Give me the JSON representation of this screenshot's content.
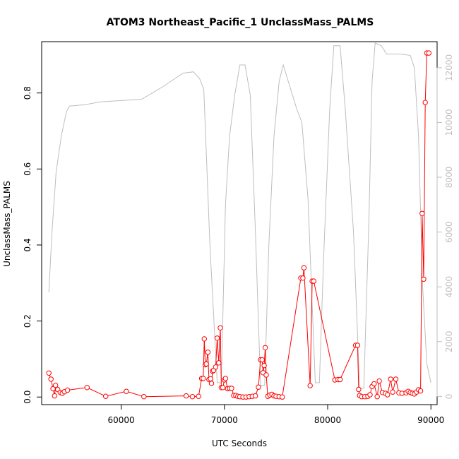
{
  "chart_data": {
    "type": "line",
    "title": "ATOM3 Northeast_Pacific_1 UnclassMass_PALMS",
    "xlabel": "UTC Seconds",
    "ylabel": "UnclassMass_PALMS",
    "xlim": [
      52300,
      90600
    ],
    "ylim": [
      -0.02,
      0.935
    ],
    "y2lim": [
      -300,
      12950
    ],
    "xticks": [
      60000,
      70000,
      80000,
      90000
    ],
    "yticks": [
      0.0,
      0.2,
      0.4,
      0.6,
      0.8
    ],
    "y2ticks": [
      0,
      2000,
      4000,
      6000,
      8000,
      10000,
      12000
    ],
    "colors": {
      "primary": "#ff0000",
      "secondary": "#bebebe",
      "frame": "#000000"
    },
    "series": [
      {
        "axis": "left",
        "style": "line+points",
        "color": "#ff0000",
        "points": [
          [
            53000,
            0.063
          ],
          [
            53200,
            0.047
          ],
          [
            53400,
            0.022
          ],
          [
            53550,
            0.003
          ],
          [
            53650,
            0.031
          ],
          [
            53850,
            0.02
          ],
          [
            54100,
            0.012
          ],
          [
            54300,
            0.01
          ],
          [
            54500,
            0.014
          ],
          [
            54800,
            0.018
          ],
          [
            56700,
            0.025
          ],
          [
            58500,
            0.002
          ],
          [
            60500,
            0.015
          ],
          [
            62200,
            0.001
          ],
          [
            66300,
            0.003
          ],
          [
            66900,
            0.001
          ],
          [
            67500,
            0.002
          ],
          [
            67800,
            0.049
          ],
          [
            67950,
            0.049
          ],
          [
            68050,
            0.153
          ],
          [
            68150,
            0.085
          ],
          [
            68250,
            0.087
          ],
          [
            68400,
            0.118
          ],
          [
            68500,
            0.046
          ],
          [
            68650,
            0.048
          ],
          [
            68750,
            0.036
          ],
          [
            68850,
            0.068
          ],
          [
            68950,
            0.07
          ],
          [
            69150,
            0.079
          ],
          [
            69300,
            0.155
          ],
          [
            69450,
            0.09
          ],
          [
            69600,
            0.182
          ],
          [
            69700,
            0.025
          ],
          [
            69850,
            0.025
          ],
          [
            70000,
            0.045
          ],
          [
            70100,
            0.049
          ],
          [
            70300,
            0.022
          ],
          [
            70500,
            0.023
          ],
          [
            70700,
            0.023
          ],
          [
            70900,
            0.004
          ],
          [
            71100,
            0.004
          ],
          [
            71300,
            0.002
          ],
          [
            71500,
            0.001
          ],
          [
            71800,
            0.0
          ],
          [
            72100,
            0.0
          ],
          [
            72400,
            0.001
          ],
          [
            72700,
            0.002
          ],
          [
            73000,
            0.003
          ],
          [
            73300,
            0.026
          ],
          [
            73500,
            0.098
          ],
          [
            73650,
            0.098
          ],
          [
            73750,
            0.064
          ],
          [
            73850,
            0.083
          ],
          [
            73950,
            0.13
          ],
          [
            74050,
            0.058
          ],
          [
            74200,
            0.002
          ],
          [
            74400,
            0.005
          ],
          [
            74600,
            0.007
          ],
          [
            74800,
            0.003
          ],
          [
            75000,
            0.002
          ],
          [
            75300,
            0.001
          ],
          [
            75600,
            0.0
          ],
          [
            77400,
            0.313
          ],
          [
            77600,
            0.313
          ],
          [
            77700,
            0.34
          ],
          [
            78300,
            0.03
          ],
          [
            78500,
            0.305
          ],
          [
            78650,
            0.305
          ],
          [
            80700,
            0.045
          ],
          [
            81000,
            0.046
          ],
          [
            81200,
            0.046
          ],
          [
            82700,
            0.136
          ],
          [
            82900,
            0.136
          ],
          [
            83000,
            0.02
          ],
          [
            83100,
            0.004
          ],
          [
            83300,
            0.001
          ],
          [
            83600,
            0.001
          ],
          [
            83900,
            0.002
          ],
          [
            84100,
            0.006
          ],
          [
            84300,
            0.028
          ],
          [
            84500,
            0.035
          ],
          [
            84800,
            0.001
          ],
          [
            85000,
            0.042
          ],
          [
            85300,
            0.012
          ],
          [
            85600,
            0.01
          ],
          [
            85800,
            0.006
          ],
          [
            86100,
            0.047
          ],
          [
            86300,
            0.013
          ],
          [
            86600,
            0.047
          ],
          [
            86900,
            0.011
          ],
          [
            87200,
            0.01
          ],
          [
            87600,
            0.011
          ],
          [
            87800,
            0.015
          ],
          [
            88000,
            0.012
          ],
          [
            88200,
            0.01
          ],
          [
            88400,
            0.008
          ],
          [
            88600,
            0.013
          ],
          [
            88800,
            0.019
          ],
          [
            89000,
            0.016
          ],
          [
            89150,
            0.483
          ],
          [
            89300,
            0.31
          ],
          [
            89450,
            0.775
          ],
          [
            89600,
            0.905
          ],
          [
            89800,
            0.905
          ]
        ]
      },
      {
        "axis": "right",
        "style": "line",
        "color": "#bebebe",
        "points": [
          [
            53000,
            3800
          ],
          [
            53300,
            6000
          ],
          [
            53700,
            8200
          ],
          [
            54200,
            9500
          ],
          [
            54700,
            10400
          ],
          [
            55000,
            10600
          ],
          [
            56500,
            10650
          ],
          [
            58000,
            10750
          ],
          [
            60000,
            10800
          ],
          [
            62000,
            10850
          ],
          [
            64000,
            11300
          ],
          [
            66000,
            11800
          ],
          [
            67000,
            11850
          ],
          [
            67600,
            11600
          ],
          [
            68000,
            11200
          ],
          [
            68600,
            5500
          ],
          [
            69300,
            500
          ],
          [
            69700,
            500
          ],
          [
            70100,
            7000
          ],
          [
            70500,
            9500
          ],
          [
            71000,
            11000
          ],
          [
            71500,
            12100
          ],
          [
            72000,
            12100
          ],
          [
            72500,
            11000
          ],
          [
            73000,
            6000
          ],
          [
            73500,
            400
          ],
          [
            73900,
            400
          ],
          [
            74300,
            5500
          ],
          [
            74800,
            9500
          ],
          [
            75300,
            11500
          ],
          [
            75700,
            12100
          ],
          [
            77000,
            10500
          ],
          [
            77500,
            10000
          ],
          [
            78100,
            7200
          ],
          [
            78800,
            500
          ],
          [
            79200,
            500
          ],
          [
            79600,
            5000
          ],
          [
            80200,
            10500
          ],
          [
            80600,
            12800
          ],
          [
            81200,
            12800
          ],
          [
            81700,
            10500
          ],
          [
            82500,
            6000
          ],
          [
            83100,
            300
          ],
          [
            83500,
            300
          ],
          [
            84000,
            6500
          ],
          [
            84300,
            11500
          ],
          [
            84600,
            12900
          ],
          [
            85200,
            12800
          ],
          [
            85700,
            12500
          ],
          [
            87000,
            12500
          ],
          [
            88000,
            12450
          ],
          [
            88400,
            12000
          ],
          [
            88800,
            9500
          ],
          [
            89200,
            4000
          ],
          [
            89600,
            1200
          ],
          [
            90000,
            500
          ]
        ]
      }
    ]
  }
}
